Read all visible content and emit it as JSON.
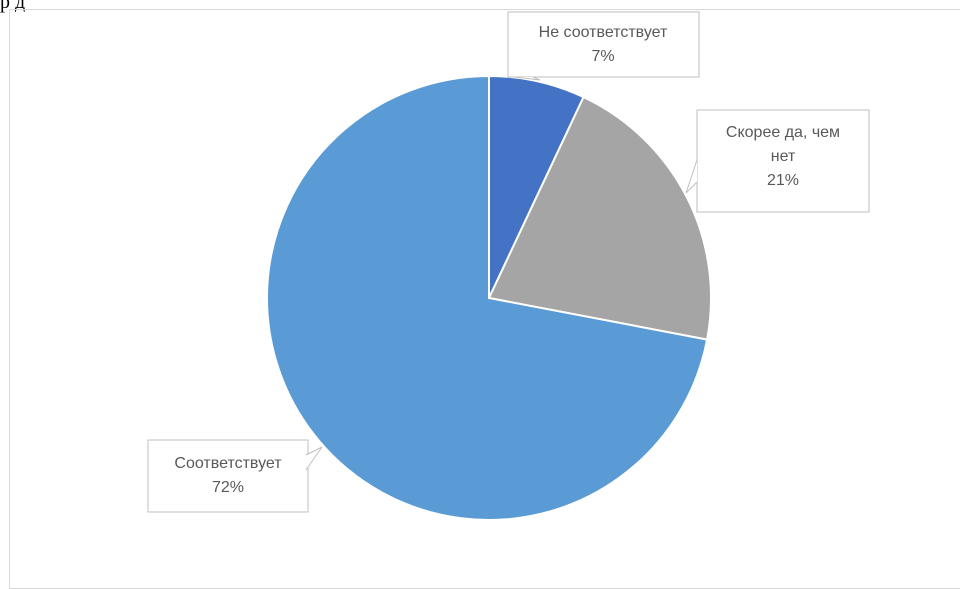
{
  "header_text": "р                                    д",
  "chart_data": {
    "type": "pie",
    "title": "",
    "start_angle_deg": 0,
    "direction": "clockwise",
    "slices": [
      {
        "label": "Не соответствует",
        "value": 7,
        "display": "7%",
        "color": "#4472c4"
      },
      {
        "label": "Скорее да, чем нет",
        "value": 21,
        "display": "21%",
        "color": "#a5a5a5"
      },
      {
        "label": "Соответствует",
        "value": 72,
        "display": "72%",
        "color": "#5b9bd5"
      }
    ],
    "data_labels": [
      {
        "lines": [
          "Не соответствует",
          "7%"
        ]
      },
      {
        "lines": [
          "Скорее да, чем",
          "нет",
          "21%"
        ]
      },
      {
        "lines": [
          "Соответствует",
          "72%"
        ]
      }
    ],
    "legend": "none"
  }
}
